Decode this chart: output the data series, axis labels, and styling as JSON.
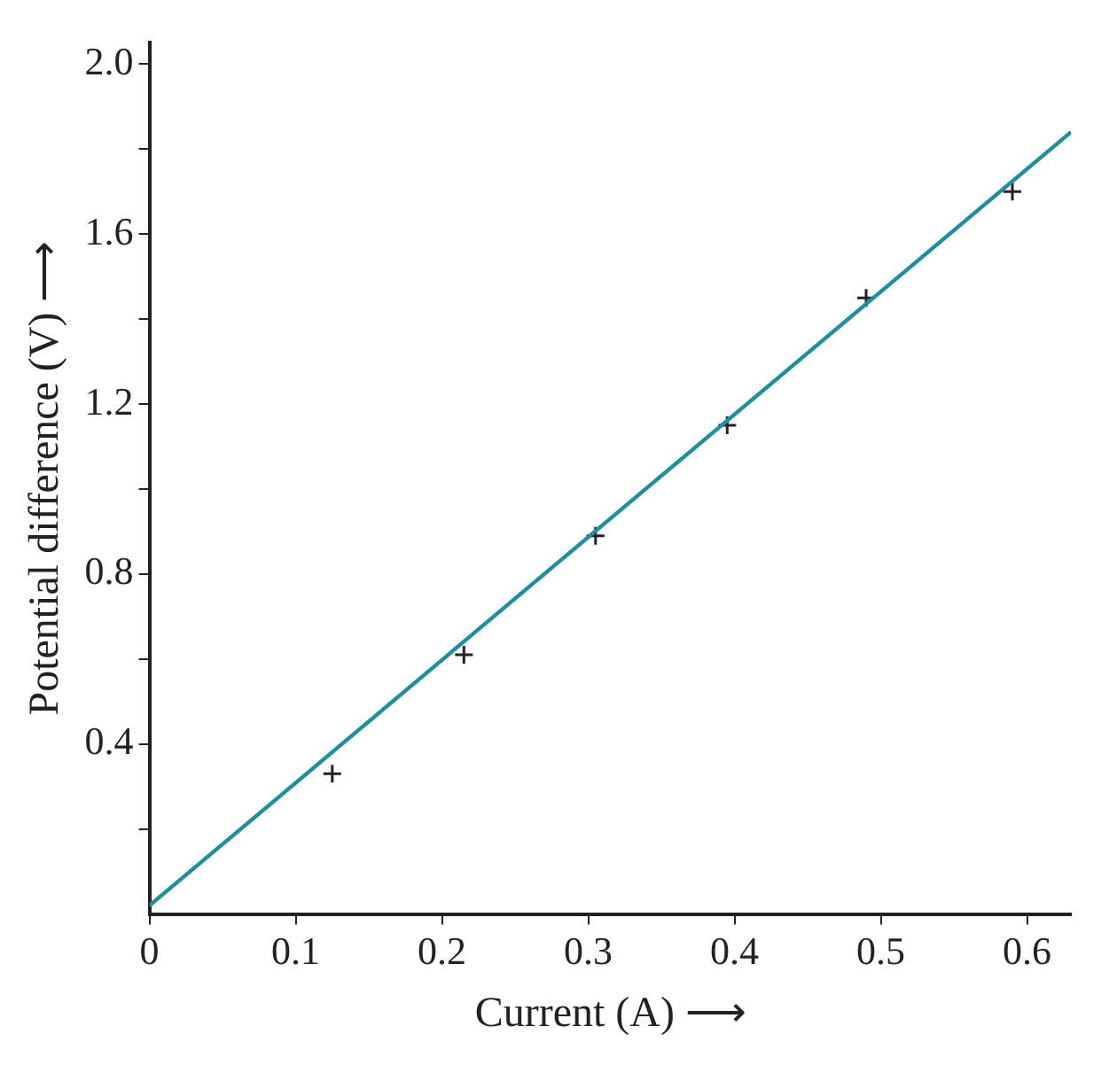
{
  "chart_data": {
    "type": "scatter",
    "xlabel": "Current (A) ⟶",
    "ylabel": "Potential difference (V) ⟶",
    "xlim": [
      0,
      0.63
    ],
    "ylim": [
      0,
      2.05
    ],
    "xticks": [
      0,
      0.1,
      0.2,
      0.3,
      0.4,
      0.5,
      0.6
    ],
    "yticks": [
      {
        "value": 0.2,
        "label": null
      },
      0.4,
      {
        "value": 0.6,
        "label": null
      },
      0.8,
      {
        "value": 1.0,
        "label": null
      },
      1.2,
      {
        "value": 1.4,
        "label": null
      },
      1.6,
      {
        "value": 1.8,
        "label": null
      },
      {
        "value": 2.0,
        "label": "2.0"
      }
    ],
    "grid": false,
    "legend": false,
    "series": [
      {
        "type": "line",
        "color": "#1f8fa0",
        "x": [
          0,
          0.63
        ],
        "values": [
          0.02,
          1.84
        ],
        "marker": "none"
      },
      {
        "color": "#222222",
        "x": [
          0.125,
          0.215,
          0.305,
          0.395,
          0.49,
          0.59
        ],
        "values": [
          0.33,
          0.61,
          0.89,
          1.15,
          1.45,
          1.7
        ],
        "marker": "cross"
      }
    ]
  }
}
